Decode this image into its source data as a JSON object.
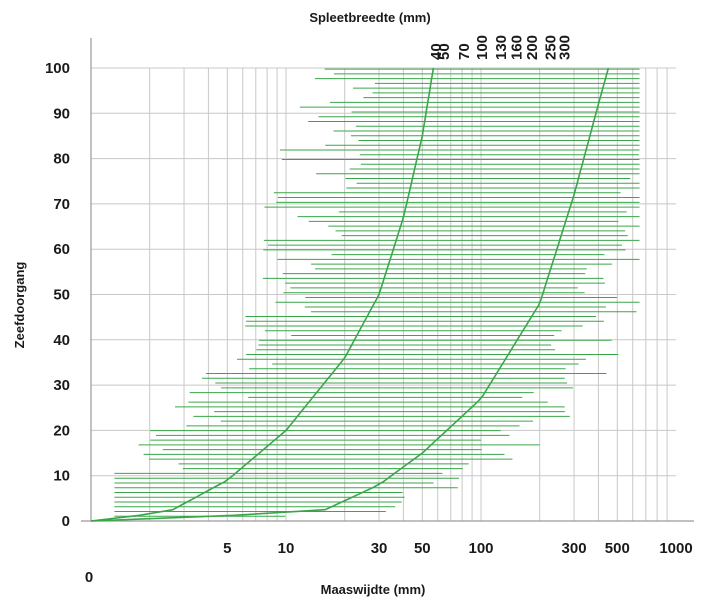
{
  "chart_data": {
    "type": "area",
    "scale": "log-x",
    "top_axis": {
      "title": "Spleetbreedte (mm)",
      "tick_labels": [
        "40",
        "50",
        "70",
        "100",
        "130",
        "160",
        "200",
        "250",
        "300"
      ]
    },
    "x_axis": {
      "title": "Maaswijdte (mm)",
      "origin_label": "0",
      "tick_labels": [
        "5",
        "10",
        "30",
        "50",
        "100",
        "300",
        "500",
        "1000"
      ],
      "range": [
        1,
        1000
      ]
    },
    "y_axis": {
      "title": "Zeefdoorgang",
      "tick_labels": [
        "0",
        "10",
        "20",
        "30",
        "40",
        "50",
        "60",
        "70",
        "80",
        "90",
        "100"
      ],
      "range": [
        0,
        100
      ]
    },
    "grid": true,
    "series": [
      {
        "role": "lower-bound curve",
        "points": [
          [
            1,
            0
          ],
          [
            2.5,
            2
          ],
          [
            5,
            9
          ],
          [
            10,
            20
          ],
          [
            20,
            36
          ],
          [
            30,
            50
          ],
          [
            40,
            67
          ],
          [
            50,
            85
          ],
          [
            57,
            100
          ]
        ]
      },
      {
        "role": "upper-bound curve",
        "points": [
          [
            1,
            0
          ],
          [
            15,
            2
          ],
          [
            30,
            8
          ],
          [
            50,
            15
          ],
          [
            100,
            27
          ],
          [
            200,
            48
          ],
          [
            300,
            72
          ],
          [
            400,
            92
          ],
          [
            450,
            100
          ]
        ]
      }
    ],
    "colors": {
      "curve": "#3aa64a",
      "band": "#3aa64a",
      "grid": "#c8c8c8",
      "axis": "#9a9a9a",
      "text": "#1a1a1a"
    }
  }
}
